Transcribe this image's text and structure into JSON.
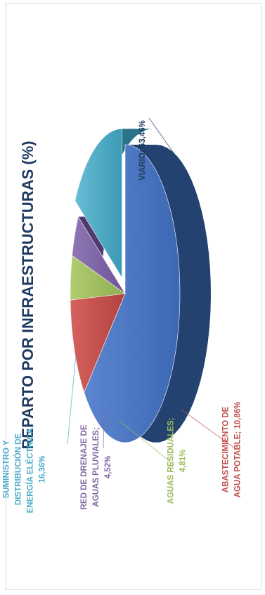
{
  "chart_data": {
    "type": "pie",
    "title": "REPARTO POR INFRAESTRUCTURAS (%)",
    "slices": [
      {
        "category": "VIARIO",
        "value": 63.46,
        "color": "#4472c4",
        "label_lines": [
          "VIARIO; 63,46%"
        ]
      },
      {
        "category": "ABASTECIMIENTO DE AGUA POTABLE",
        "value": 10.86,
        "color": "#c0504d",
        "label_lines": [
          "ABASTECIMIENTO DE",
          "AGUA POTABLE; 10,86%"
        ]
      },
      {
        "category": "AGUAS RESIDUALES",
        "value": 4.81,
        "color": "#9bbb59",
        "label_lines": [
          "AGUAS RESIDUALES;",
          "4,81%"
        ]
      },
      {
        "category": "RED DE DRENAJE DE AGUAS PLUVIALES",
        "value": 4.52,
        "color": "#8064a2",
        "label_lines": [
          "RED DE DRENAJE DE",
          "AGUAS PLUVIALES;",
          "4,52%"
        ]
      },
      {
        "category": "SUMINISTRO Y DISTRIBUCIÓN DE ENERGÍA ELÉCTRICA",
        "value": 16.36,
        "color": "#4bacc6",
        "label_lines": [
          "SUMINISTRO Y",
          "DISTRIBUCIÓN DE",
          "ENERGÍA ELÉCTRICA;",
          "16,36%"
        ]
      }
    ],
    "legend": "none",
    "style": "3d-exploded"
  }
}
